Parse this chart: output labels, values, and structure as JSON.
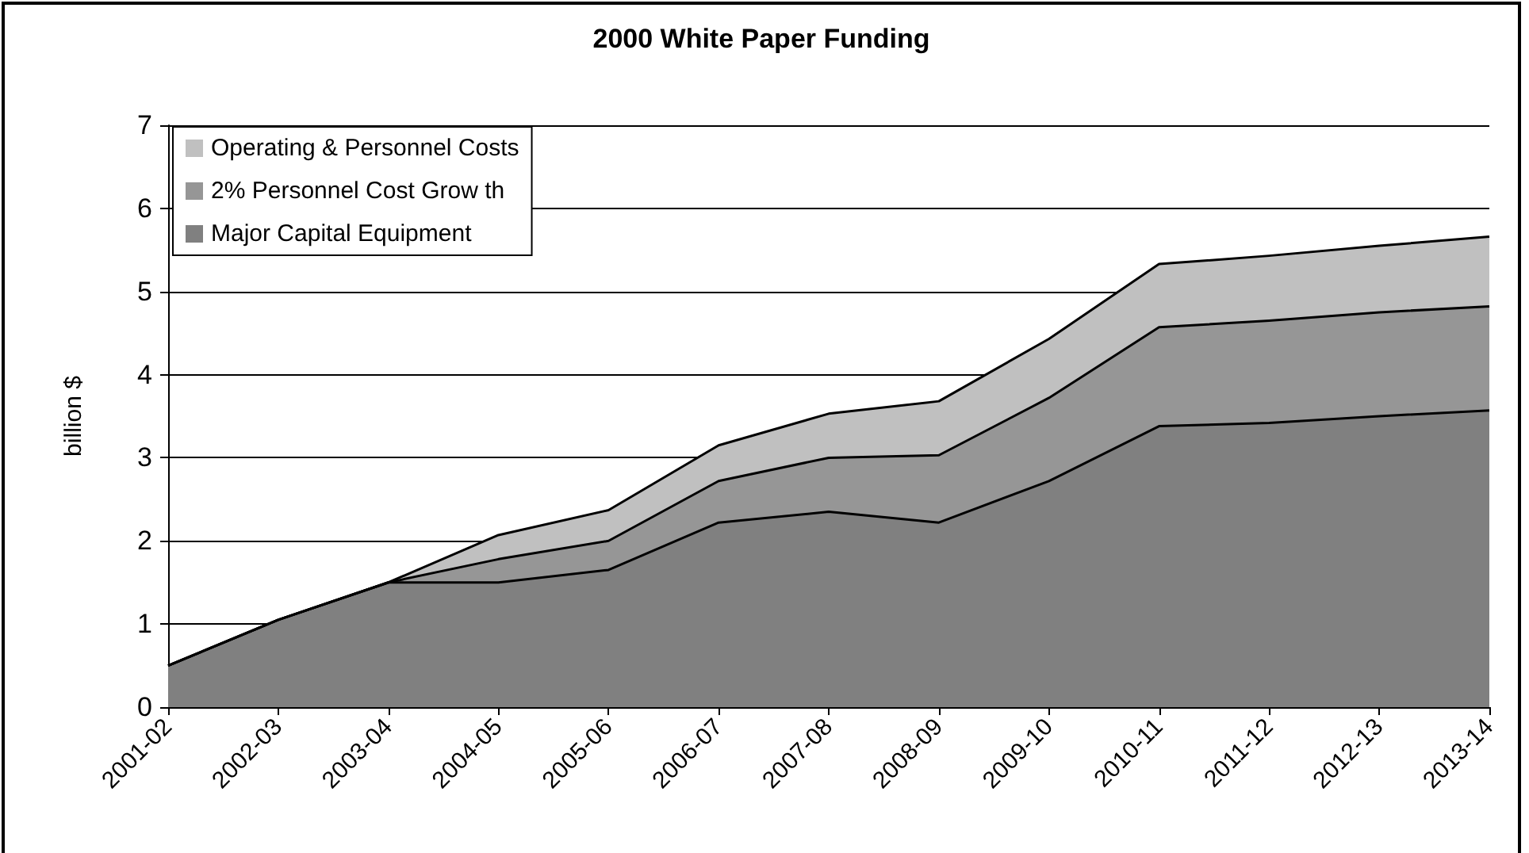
{
  "chart_data": {
    "type": "area",
    "title": "2000 White Paper Funding",
    "ylabel": "billion $",
    "categories": [
      "2001-02",
      "2002-03",
      "2003-04",
      "2004-05",
      "2005-06",
      "2006-07",
      "2007-08",
      "2008-09",
      "2009-10",
      "2010-11",
      "2011-12",
      "2012-13",
      "2013-14"
    ],
    "stacked": true,
    "series": [
      {
        "name": "Major Capital Equipment",
        "color": "#808080",
        "values": [
          0.5,
          1.05,
          1.5,
          1.5,
          1.65,
          2.22,
          2.35,
          2.22,
          2.72,
          3.38,
          3.42,
          3.5,
          3.57
        ]
      },
      {
        "name": "2% Personnel Cost Grow th",
        "color": "#969696",
        "values": [
          0,
          0,
          0,
          0.28,
          0.35,
          0.5,
          0.65,
          0.81,
          1.0,
          1.19,
          1.23,
          1.25,
          1.25
        ]
      },
      {
        "name": "Operating & Personnel Costs",
        "color": "#c0c0c0",
        "values": [
          0,
          0,
          0,
          0.29,
          0.37,
          0.43,
          0.53,
          0.65,
          0.71,
          0.76,
          0.78,
          0.8,
          0.84
        ]
      }
    ],
    "ylim": [
      0,
      7
    ],
    "yticks": [
      0,
      1,
      2,
      3,
      4,
      5,
      6,
      7
    ],
    "grid": "y",
    "legend": "top left",
    "marker": "none",
    "line_style": "solid"
  }
}
